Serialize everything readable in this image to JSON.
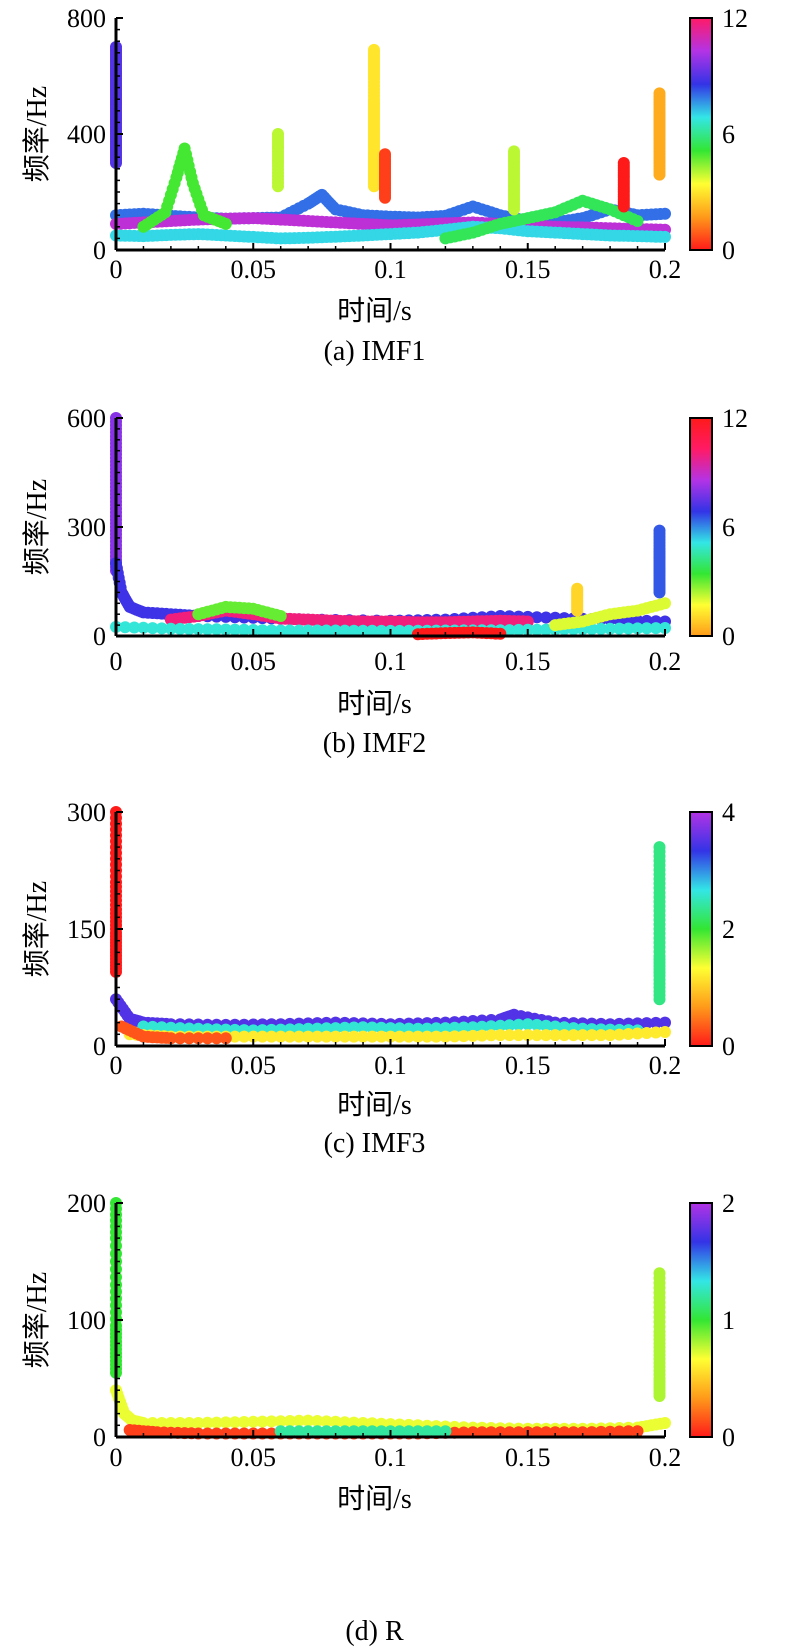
{
  "figure": {
    "panels": [
      {
        "caption": "(a) IMF1"
      },
      {
        "caption": "(b) IMF2"
      },
      {
        "caption": "(c) IMF3"
      },
      {
        "caption": "(d) R"
      }
    ]
  },
  "chart_data": [
    {
      "type": "scatter",
      "title": "",
      "caption": "(a) IMF1",
      "xlabel": "时间/s",
      "ylabel": "频率/Hz",
      "xlim": [
        0,
        0.2
      ],
      "ylim": [
        0,
        800
      ],
      "xticks": [
        0,
        0.05,
        0.1,
        0.15,
        0.2
      ],
      "xtick_labels": [
        "0",
        "0.05",
        "0.1",
        "0.15",
        "0.2"
      ],
      "yticks": [
        0,
        400,
        800
      ],
      "ytick_labels": [
        "0",
        "400",
        "800"
      ],
      "colorbar": {
        "range": [
          0,
          12
        ],
        "ticks": [
          0,
          6,
          12
        ],
        "tick_labels": [
          "0",
          "6",
          "12"
        ],
        "colormap": [
          "#ff1a1a",
          "#ff9a1a",
          "#ffff33",
          "#33e633",
          "#33e6e6",
          "#3333e6",
          "#b333e6",
          "#ff1a66"
        ]
      },
      "series": [
        {
          "x": [
            0,
            0.01,
            0.02,
            0.03,
            0.04,
            0.05,
            0.06,
            0.07,
            0.075,
            0.08,
            0.09,
            0.1,
            0.11,
            0.12,
            0.13,
            0.14,
            0.15,
            0.16,
            0.17,
            0.18,
            0.19,
            0.2
          ],
          "y": [
            120,
            125,
            118,
            112,
            108,
            110,
            112,
            160,
            190,
            140,
            120,
            115,
            112,
            118,
            150,
            120,
            100,
            95,
            110,
            140,
            120,
            125
          ],
          "c": 8
        },
        {
          "x": [
            0,
            0.01,
            0.02,
            0.03,
            0.04,
            0.05,
            0.06,
            0.07,
            0.08,
            0.09,
            0.1,
            0.11,
            0.12,
            0.13,
            0.14,
            0.15,
            0.16,
            0.17,
            0.18,
            0.19,
            0.2
          ],
          "y": [
            90,
            95,
            100,
            105,
            108,
            110,
            105,
            100,
            95,
            90,
            85,
            88,
            92,
            95,
            90,
            85,
            80,
            78,
            75,
            72,
            70
          ],
          "c": 10.5
        },
        {
          "x": [
            0,
            0.01,
            0.02,
            0.03,
            0.04,
            0.05,
            0.06,
            0.07,
            0.08,
            0.09,
            0.1,
            0.11,
            0.12,
            0.13,
            0.14,
            0.15,
            0.16,
            0.17,
            0.18,
            0.19,
            0.2
          ],
          "y": [
            50,
            48,
            52,
            55,
            50,
            45,
            40,
            42,
            46,
            50,
            55,
            60,
            70,
            80,
            75,
            65,
            60,
            55,
            50,
            48,
            45
          ],
          "c": 7
        },
        {
          "x": [
            0.01,
            0.018,
            0.022,
            0.025,
            0.028,
            0.032,
            0.04
          ],
          "y": [
            80,
            130,
            250,
            350,
            230,
            120,
            90
          ],
          "c": 5
        },
        {
          "x": [
            0.12,
            0.13,
            0.14,
            0.15,
            0.16,
            0.17,
            0.18,
            0.19
          ],
          "y": [
            40,
            60,
            90,
            110,
            130,
            170,
            140,
            100
          ],
          "c": 5.5
        },
        {
          "x": [
            0,
            0,
            0,
            0,
            0,
            0,
            0,
            0,
            0
          ],
          "y": [
            700,
            650,
            600,
            550,
            500,
            450,
            400,
            350,
            300
          ],
          "c": 9
        },
        {
          "x": [
            0.094,
            0.094,
            0.094,
            0.094,
            0.094,
            0.094,
            0.094,
            0.094,
            0.094,
            0.094
          ],
          "y": [
            690,
            640,
            590,
            520,
            470,
            420,
            370,
            320,
            270,
            220
          ],
          "c": 3
        },
        {
          "x": [
            0.059,
            0.059,
            0.059,
            0.059
          ],
          "y": [
            400,
            350,
            290,
            220
          ],
          "c": 4
        },
        {
          "x": [
            0.098,
            0.098,
            0.098,
            0.098
          ],
          "y": [
            330,
            280,
            230,
            180
          ],
          "c": 0.5
        },
        {
          "x": [
            0.145,
            0.145,
            0.145,
            0.145,
            0.145
          ],
          "y": [
            340,
            290,
            240,
            190,
            140
          ],
          "c": 4
        },
        {
          "x": [
            0.185,
            0.185,
            0.185,
            0.185
          ],
          "y": [
            300,
            250,
            200,
            150
          ],
          "c": 0
        },
        {
          "x": [
            0.198,
            0.198,
            0.198,
            0.198,
            0.198,
            0.198
          ],
          "y": [
            540,
            480,
            430,
            380,
            320,
            260
          ],
          "c": 2
        }
      ]
    },
    {
      "type": "scatter",
      "title": "",
      "caption": "(b) IMF2",
      "xlabel": "时间/s",
      "ylabel": "频率/Hz",
      "xlim": [
        0,
        0.2
      ],
      "ylim": [
        0,
        600
      ],
      "xticks": [
        0,
        0.05,
        0.1,
        0.15,
        0.2
      ],
      "xtick_labels": [
        "0",
        "0.05",
        "0.1",
        "0.15",
        "0.2"
      ],
      "yticks": [
        0,
        300,
        600
      ],
      "ytick_labels": [
        "0",
        "300",
        "600"
      ],
      "colorbar": {
        "range": [
          0,
          12
        ],
        "ticks": [
          0,
          6,
          12
        ],
        "tick_labels": [
          "0",
          "6",
          "12"
        ],
        "colormap": [
          "#ff9a1a",
          "#ffff33",
          "#33e633",
          "#33e6e6",
          "#3333e6",
          "#b333e6",
          "#ff1a66",
          "#ff1a1a"
        ]
      },
      "series": [
        {
          "x": [
            0,
            0,
            0,
            0,
            0,
            0,
            0,
            0
          ],
          "y": [
            600,
            540,
            480,
            420,
            360,
            300,
            240,
            180
          ],
          "c": 8
        },
        {
          "x": [
            0,
            0.002,
            0.005,
            0.01,
            0.02,
            0.03,
            0.05,
            0.07,
            0.1,
            0.12,
            0.14,
            0.16,
            0.18,
            0.2
          ],
          "y": [
            200,
            120,
            80,
            65,
            60,
            55,
            50,
            45,
            42,
            45,
            55,
            50,
            45,
            40
          ],
          "c": 7
        },
        {
          "x": [
            0.02,
            0.03,
            0.04,
            0.05,
            0.06,
            0.07,
            0.08,
            0.09,
            0.1,
            0.11,
            0.12,
            0.13,
            0.14,
            0.15
          ],
          "y": [
            45,
            55,
            70,
            60,
            48,
            45,
            42,
            40,
            40,
            38,
            38,
            40,
            42,
            40
          ],
          "c": 10
        },
        {
          "x": [
            0.03,
            0.04,
            0.05,
            0.06
          ],
          "y": [
            60,
            80,
            75,
            55
          ],
          "c": 3
        },
        {
          "x": [
            0,
            0.02,
            0.04,
            0.06,
            0.08,
            0.1,
            0.12,
            0.14,
            0.16,
            0.18,
            0.2
          ],
          "y": [
            25,
            20,
            18,
            15,
            15,
            14,
            15,
            16,
            18,
            20,
            22
          ],
          "c": 5
        },
        {
          "x": [
            0.11,
            0.12,
            0.13,
            0.14
          ],
          "y": [
            5,
            8,
            10,
            6
          ],
          "c": 12
        },
        {
          "x": [
            0.16,
            0.17,
            0.18,
            0.19,
            0.2
          ],
          "y": [
            30,
            40,
            60,
            70,
            90
          ],
          "c": 2
        },
        {
          "x": [
            0.168,
            0.168,
            0.168
          ],
          "y": [
            130,
            100,
            70
          ],
          "c": 1
        },
        {
          "x": [
            0.198,
            0.198,
            0.198,
            0.198,
            0.198
          ],
          "y": [
            290,
            240,
            200,
            160,
            120
          ],
          "c": 6.5
        }
      ]
    },
    {
      "type": "scatter",
      "title": "",
      "caption": "(c) IMF3",
      "xlabel": "时间/s",
      "ylabel": "频率/Hz",
      "xlim": [
        0,
        0.2
      ],
      "ylim": [
        0,
        300
      ],
      "xticks": [
        0,
        0.05,
        0.1,
        0.15,
        0.2
      ],
      "xtick_labels": [
        "0",
        "0.05",
        "0.1",
        "0.15",
        "0.2"
      ],
      "yticks": [
        0,
        150,
        300
      ],
      "ytick_labels": [
        "0",
        "150",
        "300"
      ],
      "colorbar": {
        "range": [
          0,
          4
        ],
        "ticks": [
          0,
          2,
          4
        ],
        "tick_labels": [
          "0",
          "2",
          "4"
        ],
        "colormap": [
          "#ff1a1a",
          "#ff9a1a",
          "#ffff33",
          "#33e633",
          "#33e6e6",
          "#3333e6",
          "#b333e6"
        ]
      },
      "series": [
        {
          "x": [
            0,
            0,
            0,
            0,
            0,
            0,
            0
          ],
          "y": [
            300,
            255,
            210,
            175,
            145,
            120,
            95
          ],
          "c": 0
        },
        {
          "x": [
            0,
            0.005,
            0.01,
            0.02,
            0.04,
            0.06,
            0.08,
            0.1,
            0.12,
            0.14,
            0.145,
            0.16,
            0.18,
            0.2
          ],
          "y": [
            60,
            35,
            30,
            28,
            27,
            28,
            30,
            28,
            30,
            34,
            40,
            30,
            28,
            30
          ],
          "c": 3.5
        },
        {
          "x": [
            0.01,
            0.03,
            0.05,
            0.07,
            0.09,
            0.11,
            0.13,
            0.15,
            0.17,
            0.19
          ],
          "y": [
            25,
            22,
            20,
            22,
            24,
            22,
            24,
            28,
            22,
            20
          ],
          "c": 2.6
        },
        {
          "x": [
            0.005,
            0.02,
            0.04,
            0.06,
            0.08,
            0.1,
            0.12,
            0.14,
            0.16,
            0.18,
            0.2
          ],
          "y": [
            15,
            12,
            12,
            12,
            12,
            12,
            12,
            14,
            14,
            14,
            18
          ],
          "c": 1.2
        },
        {
          "x": [
            0.002,
            0.01,
            0.02,
            0.04
          ],
          "y": [
            25,
            12,
            10,
            10
          ],
          "c": 0.3
        },
        {
          "x": [
            0.198,
            0.198,
            0.198,
            0.198,
            0.198,
            0.198,
            0.198
          ],
          "y": [
            255,
            220,
            185,
            150,
            115,
            90,
            60
          ],
          "c": 2.3
        }
      ]
    },
    {
      "type": "scatter",
      "title": "",
      "caption": "(d) R",
      "xlabel": "时间/s",
      "ylabel": "频率/Hz",
      "xlim": [
        0,
        0.2
      ],
      "ylim": [
        0,
        200
      ],
      "xticks": [
        0,
        0.05,
        0.1,
        0.15,
        0.2
      ],
      "xtick_labels": [
        "0",
        "0.05",
        "0.1",
        "0.15",
        "0.2"
      ],
      "yticks": [
        0,
        100,
        200
      ],
      "ytick_labels": [
        "0",
        "100",
        "200"
      ],
      "colorbar": {
        "range": [
          0,
          2
        ],
        "ticks": [
          0,
          1,
          2
        ],
        "tick_labels": [
          "0",
          "1",
          "2"
        ],
        "colormap": [
          "#ff1a1a",
          "#ff9a1a",
          "#ffff33",
          "#33e633",
          "#33e6e6",
          "#3333e6",
          "#b333e6"
        ]
      },
      "series": [
        {
          "x": [
            0,
            0,
            0,
            0,
            0,
            0
          ],
          "y": [
            200,
            170,
            130,
            95,
            75,
            55
          ],
          "c": 1
        },
        {
          "x": [
            0,
            0.003,
            0.006,
            0.01,
            0.03,
            0.05,
            0.07,
            0.09,
            0.11,
            0.13,
            0.15,
            0.17,
            0.19,
            0.2
          ],
          "y": [
            40,
            20,
            14,
            12,
            12,
            13,
            14,
            12,
            10,
            8,
            7,
            7,
            8,
            12
          ],
          "c": 0.7
        },
        {
          "x": [
            0.005,
            0.015,
            0.03,
            0.05,
            0.07,
            0.09,
            0.11,
            0.13,
            0.15,
            0.17,
            0.19
          ],
          "y": [
            6,
            4,
            3,
            3,
            3,
            3,
            3,
            4,
            4,
            4,
            5
          ],
          "c": 0.1
        },
        {
          "x": [
            0.06,
            0.08,
            0.1,
            0.12
          ],
          "y": [
            5,
            5,
            5,
            5
          ],
          "c": 1.2
        },
        {
          "x": [
            0.198,
            0.198,
            0.198,
            0.198,
            0.198,
            0.198
          ],
          "y": [
            140,
            115,
            90,
            70,
            50,
            35
          ],
          "c": 0.8
        }
      ]
    }
  ]
}
